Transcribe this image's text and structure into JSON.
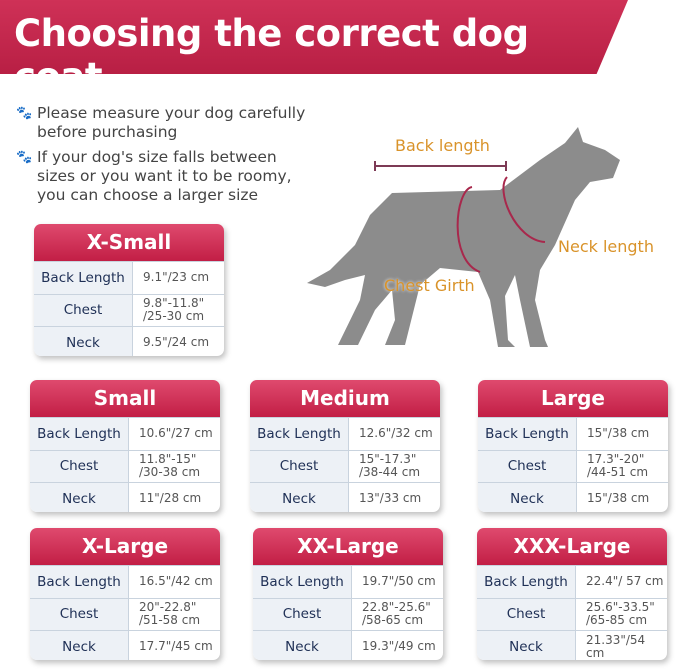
{
  "title": "Choosing the correct dog coat",
  "tips": [
    "Please measure your dog carefully before purchasing",
    "If your dog's size falls between sizes or you want it to be roomy, you can choose a larger size"
  ],
  "diagram": {
    "back": "Back length",
    "neck": "Neck length",
    "chest": "Chest Girth"
  },
  "row_labels": {
    "back": "Back Length",
    "chest": "Chest",
    "neck": "Neck"
  },
  "sizes": [
    {
      "name": "X-Small",
      "back": "9.1\"/23 cm",
      "chest": "9.8\"-11.8\" /25-30 cm",
      "neck": "9.5\"/24 cm"
    },
    {
      "name": "Small",
      "back": "10.6\"/27 cm",
      "chest": "11.8\"-15\" /30-38 cm",
      "neck": "11\"/28 cm"
    },
    {
      "name": "Medium",
      "back": "12.6\"/32 cm",
      "chest": "15\"-17.3\" /38-44 cm",
      "neck": "13\"/33 cm"
    },
    {
      "name": "Large",
      "back": "15\"/38 cm",
      "chest": "17.3\"-20\" /44-51 cm",
      "neck": "15\"/38 cm"
    },
    {
      "name": "X-Large",
      "back": "16.5\"/42 cm",
      "chest": "20\"-22.8\" /51-58 cm",
      "neck": "17.7\"/45 cm"
    },
    {
      "name": "XX-Large",
      "back": "19.7\"/50 cm",
      "chest": "22.8\"-25.6\" /58-65 cm",
      "neck": "19.3\"/49 cm"
    },
    {
      "name": "XXX-Large",
      "back": "22.4\"/ 57 cm",
      "chest": "25.6\"-33.5\" /65-85 cm",
      "neck": "21.33\"/54 cm"
    }
  ],
  "colors": {
    "brand": "#c21e45",
    "label": "#d9932a",
    "dog": "#8c8c8c"
  }
}
